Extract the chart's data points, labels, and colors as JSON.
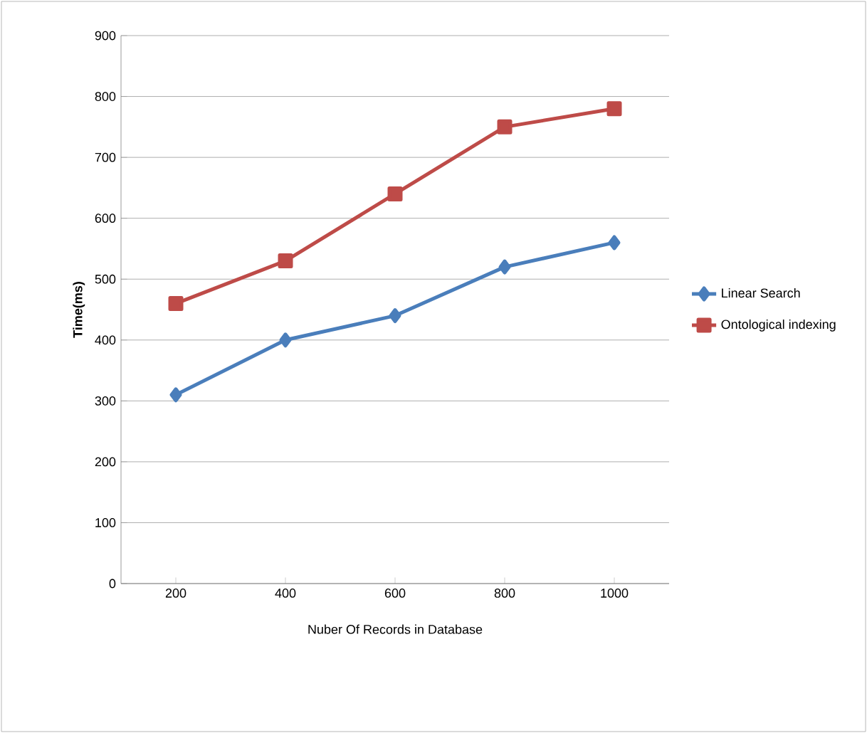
{
  "chart_data": {
    "type": "line",
    "xlabel": "Nuber Of Records in Database",
    "ylabel": "Time(ms)",
    "categories": [
      "200",
      "400",
      "600",
      "800",
      "1000"
    ],
    "series": [
      {
        "name": "Linear Search",
        "color": "#4a7ebb",
        "marker": "diamond",
        "values": [
          310,
          400,
          440,
          520,
          560
        ]
      },
      {
        "name": "Ontological indexing",
        "color": "#be4b48",
        "marker": "square",
        "values": [
          460,
          530,
          640,
          750,
          780
        ]
      }
    ],
    "ylim": [
      0,
      900
    ],
    "yticks": [
      0,
      100,
      200,
      300,
      400,
      500,
      600,
      700,
      800,
      900
    ],
    "grid": "y",
    "legend": "right",
    "line_style": "solid"
  }
}
